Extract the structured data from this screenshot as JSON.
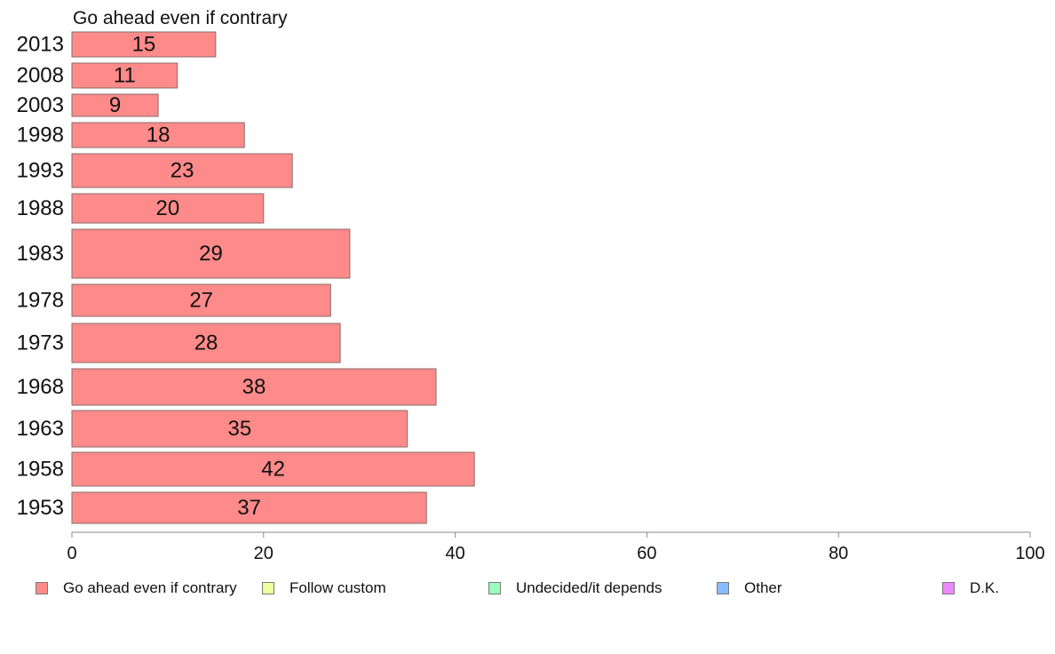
{
  "chart_data": {
    "type": "bar",
    "orientation": "horizontal",
    "title": "Go ahead even if contrary",
    "xlabel": "",
    "ylabel": "",
    "xlim": [
      0,
      100
    ],
    "x_ticks": [
      0,
      20,
      40,
      60,
      80,
      100
    ],
    "grid": false,
    "categories": [
      "2013",
      "2008",
      "2003",
      "1998",
      "1993",
      "1988",
      "1983",
      "1978",
      "1973",
      "1968",
      "1963",
      "1958",
      "1953"
    ],
    "series": [
      {
        "name": "Go ahead even if contrary",
        "color": "#ff8a8a",
        "values": [
          15,
          11,
          9,
          18,
          23,
          20,
          29,
          27,
          28,
          38,
          35,
          42,
          37
        ],
        "labels": [
          "15",
          "11",
          "9",
          "18",
          "23",
          "20",
          "29",
          "27",
          "28",
          "38",
          "35",
          "42",
          "37"
        ]
      }
    ],
    "legend_position": "bottom",
    "legend": [
      {
        "label": "Go ahead even if contrary",
        "color": "#ff8a8a"
      },
      {
        "label": "Follow custom",
        "color": "#eeff99"
      },
      {
        "label": "Undecided/it depends",
        "color": "#99ffbb"
      },
      {
        "label": "Other",
        "color": "#88bbff"
      },
      {
        "label": "D.K.",
        "color": "#ee88ff"
      }
    ]
  }
}
